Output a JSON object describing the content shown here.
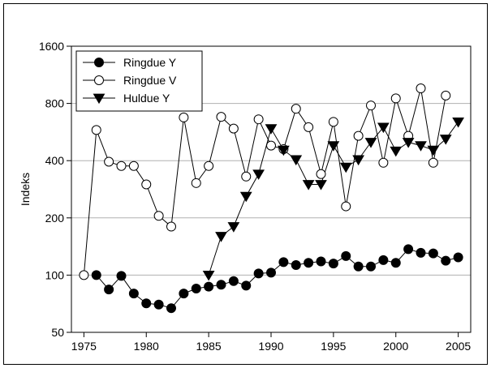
{
  "chart_data": {
    "type": "line",
    "ylabel": "Indeks",
    "xlabel": "",
    "title": "",
    "yscale": "log2",
    "ylim": [
      50,
      1600
    ],
    "xlim": [
      1974,
      2006
    ],
    "yticks": [
      50,
      100,
      200,
      400,
      800,
      1600
    ],
    "xticks": [
      1975,
      1980,
      1985,
      1990,
      1995,
      2000,
      2005
    ],
    "grid": "horizontal",
    "legend": "top-left",
    "series": [
      {
        "name": "Ringdue Y",
        "marker": "filled-circle",
        "x": [
          1975,
          1976,
          1977,
          1978,
          1979,
          1980,
          1981,
          1982,
          1983,
          1984,
          1985,
          1986,
          1987,
          1988,
          1989,
          1990,
          1991,
          1992,
          1993,
          1994,
          1995,
          1996,
          1997,
          1998,
          1999,
          2000,
          2001,
          2002,
          2003,
          2004,
          2005
        ],
        "values": [
          null,
          100,
          84,
          99,
          80,
          71,
          70,
          67,
          80,
          85,
          87,
          89,
          93,
          88,
          102,
          103,
          117,
          113,
          116,
          118,
          115,
          126,
          111,
          111,
          120,
          116,
          137,
          131,
          130,
          119,
          124
        ]
      },
      {
        "name": "Ringdue V",
        "marker": "open-circle",
        "x": [
          1975,
          1976,
          1977,
          1978,
          1979,
          1980,
          1981,
          1982,
          1983,
          1984,
          1985,
          1986,
          1987,
          1988,
          1989,
          1990,
          1991,
          1992,
          1993,
          1994,
          1995,
          1996,
          1997,
          1998,
          1999,
          2000,
          2001,
          2002,
          2003,
          2004,
          2005
        ],
        "values": [
          100,
          580,
          395,
          375,
          375,
          300,
          205,
          180,
          675,
          305,
          375,
          680,
          590,
          330,
          660,
          480,
          460,
          750,
          600,
          340,
          640,
          230,
          540,
          780,
          390,
          850,
          540,
          960,
          390,
          880,
          null
        ]
      },
      {
        "name": "Huldue Y",
        "marker": "filled-triangle-down",
        "x": [
          1975,
          1976,
          1977,
          1978,
          1979,
          1980,
          1981,
          1982,
          1983,
          1984,
          1985,
          1986,
          1987,
          1988,
          1989,
          1990,
          1991,
          1992,
          1993,
          1994,
          1995,
          1996,
          1997,
          1998,
          1999,
          2000,
          2001,
          2002,
          2003,
          2004,
          2005
        ],
        "values": [
          null,
          null,
          null,
          null,
          null,
          null,
          null,
          null,
          null,
          null,
          100,
          160,
          180,
          260,
          340,
          590,
          455,
          405,
          300,
          300,
          480,
          370,
          405,
          500,
          600,
          450,
          500,
          480,
          455,
          520,
          640
        ]
      }
    ]
  }
}
